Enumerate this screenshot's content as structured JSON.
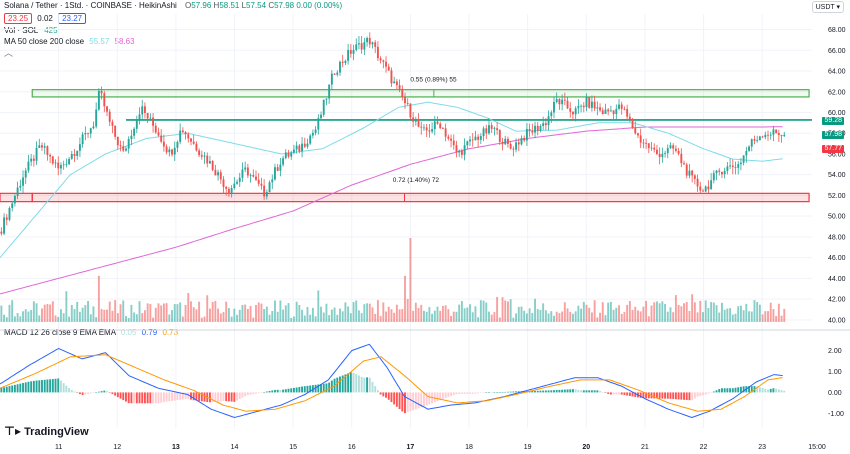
{
  "header": {
    "symbol": "Solana / Tether · 1Std. · COINBASE · HeikinAshi",
    "ohlc": [
      {
        "k": "O",
        "v": "57.96"
      },
      {
        "k": "H",
        "v": "58.51"
      },
      {
        "k": "L",
        "v": "57.54"
      },
      {
        "k": "C",
        "v": "57.98"
      }
    ],
    "change": "0.00 (0.00%)",
    "sell_price": "23.25",
    "spread": "0.02",
    "buy_price": "23.27",
    "vol_label": "Vol · SOL",
    "vol_value": "425",
    "ma_label": "MA 50 close 200 close",
    "ma50_value": "55.57",
    "ma200_value": "58.63",
    "macd_label": "MACD 12 26 close 9 EMA EMA",
    "macd_hist": "0.05",
    "macd_line": "0.79",
    "macd_signal": "0.73",
    "currency": "USDT"
  },
  "annotations": {
    "upper_measure": "0.55 (0.89%) 55",
    "lower_measure": "0.72 (1.40%) 72"
  },
  "price_tags": [
    {
      "text": "59.28",
      "color": "#089981"
    },
    {
      "text": "57.98",
      "color": "#089981"
    },
    {
      "text": "57.77",
      "color": "#f23645"
    }
  ],
  "brand": "TradingView",
  "colors": {
    "up": "#26a69a",
    "down": "#ef5350",
    "ma50": "#7fdbe8",
    "ma200": "#e066d6",
    "macd": "#2962ff",
    "signal": "#ff9800",
    "green_zone": "#4caf50",
    "red_zone": "#f23645"
  },
  "chart_data": [
    {
      "type": "candlestick",
      "title": "Solana / Tether · 1Std. · COINBASE · HeikinAshi",
      "x_ticks": [
        "11",
        "12",
        "13",
        "14",
        "15",
        "16",
        "17",
        "18",
        "19",
        "20",
        "21",
        "22",
        "23",
        "15:00"
      ],
      "y_ticks": [
        40,
        42,
        44,
        46,
        48,
        50,
        52,
        54,
        56,
        58,
        60,
        62,
        64,
        66,
        68
      ],
      "ylim": [
        39.5,
        69.5
      ],
      "grid": true,
      "zones": [
        {
          "from": 61.5,
          "to": 62.2,
          "color": "green"
        },
        {
          "from": 51.4,
          "to": 52.2,
          "color": "red"
        }
      ],
      "resistance_line": 59.28,
      "close_path": [
        {
          "day": 10.0,
          "price": 48.5
        },
        {
          "day": 10.4,
          "price": 54.0
        },
        {
          "day": 10.7,
          "price": 56.8
        },
        {
          "day": 11.0,
          "price": 54.5
        },
        {
          "day": 11.3,
          "price": 56.5
        },
        {
          "day": 11.6,
          "price": 59.0
        },
        {
          "day": 11.7,
          "price": 62.0
        },
        {
          "day": 11.9,
          "price": 58.5
        },
        {
          "day": 12.1,
          "price": 56.0
        },
        {
          "day": 12.4,
          "price": 60.5
        },
        {
          "day": 12.7,
          "price": 58.0
        },
        {
          "day": 12.9,
          "price": 56.0
        },
        {
          "day": 13.1,
          "price": 58.5
        },
        {
          "day": 13.3,
          "price": 57.0
        },
        {
          "day": 13.6,
          "price": 55.0
        },
        {
          "day": 13.9,
          "price": 52.5
        },
        {
          "day": 14.2,
          "price": 54.5
        },
        {
          "day": 14.5,
          "price": 52.2
        },
        {
          "day": 14.8,
          "price": 55.5
        },
        {
          "day": 15.1,
          "price": 56.5
        },
        {
          "day": 15.4,
          "price": 58.5
        },
        {
          "day": 15.7,
          "price": 64.0
        },
        {
          "day": 16.0,
          "price": 66.0
        },
        {
          "day": 16.3,
          "price": 67.0
        },
        {
          "day": 16.6,
          "price": 64.0
        },
        {
          "day": 16.9,
          "price": 61.0
        },
        {
          "day": 17.2,
          "price": 58.0
        },
        {
          "day": 17.5,
          "price": 59.0
        },
        {
          "day": 17.8,
          "price": 56.0
        },
        {
          "day": 18.1,
          "price": 57.5
        },
        {
          "day": 18.4,
          "price": 58.5
        },
        {
          "day": 18.7,
          "price": 56.5
        },
        {
          "day": 19.0,
          "price": 58.0
        },
        {
          "day": 19.3,
          "price": 59.0
        },
        {
          "day": 19.5,
          "price": 61.2
        },
        {
          "day": 19.8,
          "price": 60.0
        },
        {
          "day": 20.0,
          "price": 61.0
        },
        {
          "day": 20.3,
          "price": 60.0
        },
        {
          "day": 20.6,
          "price": 60.5
        },
        {
          "day": 20.9,
          "price": 57.5
        },
        {
          "day": 21.2,
          "price": 56.0
        },
        {
          "day": 21.5,
          "price": 56.5
        },
        {
          "day": 21.8,
          "price": 53.5
        },
        {
          "day": 22.0,
          "price": 52.5
        },
        {
          "day": 22.3,
          "price": 54.5
        },
        {
          "day": 22.6,
          "price": 55.0
        },
        {
          "day": 22.8,
          "price": 57.0
        },
        {
          "day": 23.0,
          "price": 58.0
        },
        {
          "day": 23.4,
          "price": 57.98
        }
      ],
      "ma50_path": [
        {
          "day": 10.0,
          "price": 46.0
        },
        {
          "day": 10.6,
          "price": 50.0
        },
        {
          "day": 11.2,
          "price": 54.0
        },
        {
          "day": 11.8,
          "price": 56.0
        },
        {
          "day": 12.5,
          "price": 57.5
        },
        {
          "day": 13.2,
          "price": 58.0
        },
        {
          "day": 14.0,
          "price": 57.0
        },
        {
          "day": 14.8,
          "price": 56.0
        },
        {
          "day": 15.5,
          "price": 56.5
        },
        {
          "day": 16.2,
          "price": 58.5
        },
        {
          "day": 16.8,
          "price": 60.5
        },
        {
          "day": 17.3,
          "price": 61.0
        },
        {
          "day": 17.8,
          "price": 60.5
        },
        {
          "day": 18.3,
          "price": 59.5
        },
        {
          "day": 18.8,
          "price": 58.2
        },
        {
          "day": 19.5,
          "price": 58.3
        },
        {
          "day": 20.2,
          "price": 59.0
        },
        {
          "day": 20.8,
          "price": 59.0
        },
        {
          "day": 21.4,
          "price": 58.0
        },
        {
          "day": 22.0,
          "price": 56.5
        },
        {
          "day": 22.5,
          "price": 55.5
        },
        {
          "day": 23.0,
          "price": 55.3
        },
        {
          "day": 23.4,
          "price": 55.57
        }
      ],
      "ma200_path": [
        {
          "day": 10.0,
          "price": 42.5
        },
        {
          "day": 11.0,
          "price": 44.0
        },
        {
          "day": 12.0,
          "price": 45.5
        },
        {
          "day": 13.0,
          "price": 47.0
        },
        {
          "day": 14.0,
          "price": 48.8
        },
        {
          "day": 15.0,
          "price": 50.5
        },
        {
          "day": 16.0,
          "price": 53.0
        },
        {
          "day": 17.0,
          "price": 55.0
        },
        {
          "day": 18.0,
          "price": 56.5
        },
        {
          "day": 19.0,
          "price": 57.5
        },
        {
          "day": 20.0,
          "price": 58.2
        },
        {
          "day": 21.0,
          "price": 58.6
        },
        {
          "day": 22.0,
          "price": 58.6
        },
        {
          "day": 23.0,
          "price": 58.6
        },
        {
          "day": 23.4,
          "price": 58.63
        }
      ]
    },
    {
      "type": "bar",
      "title": "Vol · SOL",
      "spikes": [
        {
          "day": 17.0,
          "relative_height": 1.0
        },
        {
          "day": 11.7,
          "relative_height": 0.55
        },
        {
          "day": 16.9,
          "relative_height": 0.55
        }
      ]
    },
    {
      "type": "line",
      "title": "MACD 12 26 close 9 EMA EMA",
      "y_ticks": [
        -1.0,
        0.0,
        1.0,
        2.0
      ],
      "ylim": [
        -1.7,
        2.6
      ],
      "series": [
        {
          "name": "MACD",
          "points": [
            {
              "day": 10.0,
              "value": 0.4
            },
            {
              "day": 10.5,
              "value": 1.3
            },
            {
              "day": 11.0,
              "value": 2.1
            },
            {
              "day": 11.4,
              "value": 1.6
            },
            {
              "day": 11.8,
              "value": 1.9
            },
            {
              "day": 12.2,
              "value": 0.8
            },
            {
              "day": 12.7,
              "value": 0.2
            },
            {
              "day": 13.2,
              "value": -0.1
            },
            {
              "day": 13.6,
              "value": -0.8
            },
            {
              "day": 14.0,
              "value": -1.2
            },
            {
              "day": 14.4,
              "value": -0.9
            },
            {
              "day": 14.8,
              "value": -0.6
            },
            {
              "day": 15.2,
              "value": -0.1
            },
            {
              "day": 15.6,
              "value": 0.6
            },
            {
              "day": 16.0,
              "value": 2.0
            },
            {
              "day": 16.3,
              "value": 2.3
            },
            {
              "day": 16.6,
              "value": 1.2
            },
            {
              "day": 16.9,
              "value": -0.2
            },
            {
              "day": 17.3,
              "value": -0.8
            },
            {
              "day": 17.7,
              "value": -0.6
            },
            {
              "day": 18.1,
              "value": -0.5
            },
            {
              "day": 18.6,
              "value": -0.2
            },
            {
              "day": 19.0,
              "value": 0.1
            },
            {
              "day": 19.4,
              "value": 0.4
            },
            {
              "day": 19.8,
              "value": 0.7
            },
            {
              "day": 20.2,
              "value": 0.7
            },
            {
              "day": 20.6,
              "value": 0.3
            },
            {
              "day": 21.0,
              "value": -0.3
            },
            {
              "day": 21.4,
              "value": -0.8
            },
            {
              "day": 21.8,
              "value": -1.2
            },
            {
              "day": 22.1,
              "value": -0.9
            },
            {
              "day": 22.5,
              "value": -0.3
            },
            {
              "day": 22.9,
              "value": 0.5
            },
            {
              "day": 23.2,
              "value": 0.85
            },
            {
              "day": 23.4,
              "value": 0.79
            }
          ]
        },
        {
          "name": "Signal",
          "points": [
            {
              "day": 10.0,
              "value": 0.2
            },
            {
              "day": 10.6,
              "value": 0.9
            },
            {
              "day": 11.2,
              "value": 1.7
            },
            {
              "day": 11.8,
              "value": 1.8
            },
            {
              "day": 12.3,
              "value": 1.2
            },
            {
              "day": 12.8,
              "value": 0.6
            },
            {
              "day": 13.3,
              "value": 0.1
            },
            {
              "day": 13.8,
              "value": -0.6
            },
            {
              "day": 14.2,
              "value": -0.9
            },
            {
              "day": 14.7,
              "value": -0.8
            },
            {
              "day": 15.2,
              "value": -0.4
            },
            {
              "day": 15.7,
              "value": 0.3
            },
            {
              "day": 16.2,
              "value": 1.5
            },
            {
              "day": 16.5,
              "value": 1.7
            },
            {
              "day": 16.9,
              "value": 0.8
            },
            {
              "day": 17.3,
              "value": -0.2
            },
            {
              "day": 17.8,
              "value": -0.5
            },
            {
              "day": 18.3,
              "value": -0.4
            },
            {
              "day": 18.8,
              "value": -0.1
            },
            {
              "day": 19.4,
              "value": 0.3
            },
            {
              "day": 19.9,
              "value": 0.6
            },
            {
              "day": 20.4,
              "value": 0.6
            },
            {
              "day": 20.9,
              "value": 0.1
            },
            {
              "day": 21.4,
              "value": -0.5
            },
            {
              "day": 21.9,
              "value": -0.9
            },
            {
              "day": 22.3,
              "value": -0.8
            },
            {
              "day": 22.7,
              "value": -0.2
            },
            {
              "day": 23.1,
              "value": 0.6
            },
            {
              "day": 23.4,
              "value": 0.73
            }
          ]
        }
      ]
    }
  ]
}
